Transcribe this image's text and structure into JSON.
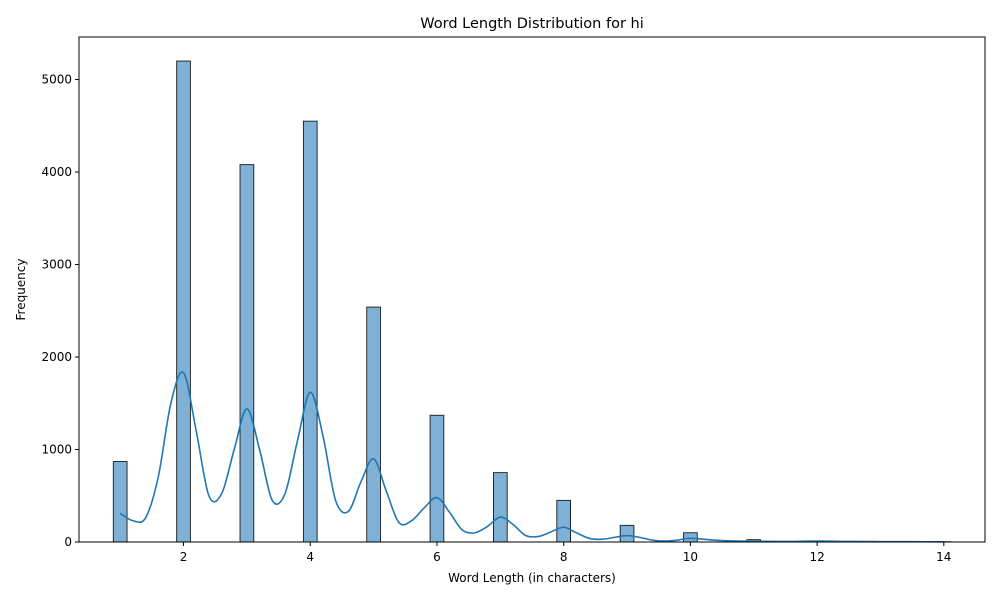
{
  "chart_data": {
    "type": "bar",
    "title": "Word Length Distribution for hi",
    "xlabel": "Word Length (in characters)",
    "ylabel": "Frequency",
    "xlim": [
      0.35,
      14.65
    ],
    "ylim": [
      0,
      5460
    ],
    "x_ticks": [
      2,
      4,
      6,
      8,
      10,
      12,
      14
    ],
    "x_tick_labels": [
      "2",
      "4",
      "6",
      "8",
      "10",
      "12",
      "14"
    ],
    "y_ticks": [
      0,
      1000,
      2000,
      3000,
      4000,
      5000
    ],
    "y_tick_labels": [
      "0",
      "1000",
      "2000",
      "3000",
      "4000",
      "5000"
    ],
    "categories": [
      1,
      2,
      3,
      4,
      5,
      6,
      7,
      8,
      9,
      10,
      11,
      12,
      13,
      14
    ],
    "bin_width": 0.217,
    "values": [
      870,
      5200,
      4080,
      4550,
      2540,
      1370,
      750,
      450,
      180,
      100,
      25,
      10,
      5,
      3
    ],
    "kde": {
      "x": [
        1,
        1.2,
        1.4,
        1.6,
        1.8,
        2,
        2.2,
        2.4,
        2.6,
        2.8,
        3,
        3.2,
        3.4,
        3.6,
        3.8,
        4,
        4.2,
        4.4,
        4.6,
        4.8,
        5,
        5.2,
        5.4,
        5.6,
        5.8,
        6,
        6.2,
        6.4,
        6.6,
        6.8,
        7,
        7.2,
        7.4,
        7.6,
        7.8,
        8,
        8.2,
        8.4,
        8.6,
        8.8,
        9,
        9.2,
        9.4,
        9.6,
        9.8,
        10,
        10.5,
        11,
        11.5,
        12,
        12.5,
        13,
        13.5,
        14
      ],
      "y": [
        310,
        230,
        260,
        700,
        1500,
        1830,
        1200,
        500,
        520,
        1000,
        1440,
        1000,
        450,
        520,
        1100,
        1620,
        1150,
        450,
        330,
        650,
        900,
        550,
        210,
        230,
        370,
        480,
        320,
        130,
        100,
        170,
        270,
        190,
        70,
        60,
        110,
        160,
        100,
        40,
        30,
        50,
        70,
        50,
        20,
        10,
        20,
        40,
        15,
        8,
        6,
        10,
        6,
        4,
        3,
        2
      ]
    },
    "legend": "none",
    "grid": false,
    "colors": {
      "bar_fill": "#7fb0d6",
      "bar_edge": "#1a1a1a",
      "kde_line": "#1f77b4",
      "axis": "#000000"
    }
  }
}
